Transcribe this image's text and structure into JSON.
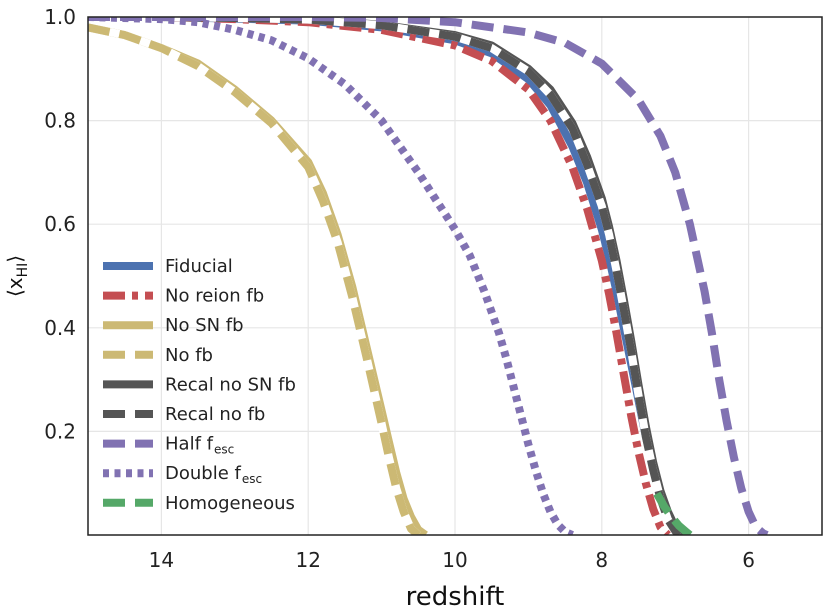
{
  "chart_data": {
    "type": "line",
    "title": "",
    "xlabel": "redshift",
    "ylabel": {
      "prefix": "⟨x",
      "sub": "HI",
      "suffix": "⟩"
    },
    "xlim": [
      15,
      5
    ],
    "ylim": [
      0.0,
      1.0
    ],
    "xticks": [
      14,
      12,
      10,
      8,
      6
    ],
    "xtick_labels": [
      "14",
      "12",
      "10",
      "8",
      "6"
    ],
    "yticks": [
      0.2,
      0.4,
      0.6,
      0.8,
      1.0
    ],
    "ytick_labels": [
      "0.2",
      "0.4",
      "0.6",
      "0.8",
      "1.0"
    ],
    "grid": true,
    "legend_position": "center-left",
    "series": [
      {
        "name": "Fiducial",
        "label": "Fiducial",
        "sub": "",
        "color": "#4C72B0",
        "style": "solid",
        "x": [
          15,
          14,
          13,
          12,
          11,
          10,
          9.5,
          9,
          8.7,
          8.4,
          8.2,
          8.0,
          7.9,
          7.8,
          7.7,
          7.6,
          7.5,
          7.4,
          7.3,
          7.2,
          7.1,
          7.0,
          6.95,
          6.9
        ],
        "y": [
          1.0,
          1.0,
          0.997,
          0.993,
          0.98,
          0.955,
          0.93,
          0.88,
          0.83,
          0.75,
          0.68,
          0.59,
          0.535,
          0.47,
          0.4,
          0.33,
          0.26,
          0.19,
          0.13,
          0.08,
          0.04,
          0.015,
          0.005,
          0.0
        ]
      },
      {
        "name": "No reion fb",
        "label": "No reion fb",
        "sub": "",
        "color": "#C44E52",
        "style": "dashdot",
        "x": [
          15,
          14,
          13,
          12,
          11,
          10,
          9.5,
          9,
          8.7,
          8.4,
          8.2,
          8.0,
          7.9,
          7.8,
          7.7,
          7.6,
          7.5,
          7.4,
          7.3,
          7.2,
          7.1
        ],
        "y": [
          1.0,
          1.0,
          0.996,
          0.99,
          0.975,
          0.945,
          0.915,
          0.86,
          0.8,
          0.71,
          0.63,
          0.53,
          0.465,
          0.39,
          0.31,
          0.23,
          0.16,
          0.1,
          0.05,
          0.015,
          0.0
        ]
      },
      {
        "name": "No SN fb",
        "label": "No SN fb",
        "sub": "",
        "color": "#CCB974",
        "style": "solid",
        "x": [
          15,
          14.5,
          14,
          13.5,
          13,
          12.5,
          12,
          11.8,
          11.6,
          11.4,
          11.2,
          11.0,
          10.9,
          10.8,
          10.7,
          10.6,
          10.5,
          10.4
        ],
        "y": [
          0.98,
          0.965,
          0.94,
          0.91,
          0.86,
          0.8,
          0.72,
          0.66,
          0.58,
          0.48,
          0.36,
          0.24,
          0.18,
          0.12,
          0.07,
          0.035,
          0.01,
          0.0
        ]
      },
      {
        "name": "No fb",
        "label": "No fb",
        "sub": "",
        "color": "#CCB974",
        "style": "dashed",
        "gap_color": "#ffffff",
        "x": [
          15,
          14.5,
          14,
          13.5,
          13,
          12.5,
          12,
          11.8,
          11.6,
          11.4,
          11.2,
          11.0,
          10.9,
          10.8,
          10.7,
          10.6,
          10.5
        ],
        "y": [
          0.98,
          0.965,
          0.94,
          0.905,
          0.855,
          0.795,
          0.71,
          0.645,
          0.565,
          0.46,
          0.34,
          0.215,
          0.15,
          0.09,
          0.045,
          0.012,
          0.0
        ]
      },
      {
        "name": "Recal no SN fb",
        "label": "Recal no SN fb",
        "sub": "",
        "color": "#555555",
        "style": "solid",
        "x": [
          15,
          14,
          13,
          12,
          11,
          10,
          9.5,
          9,
          8.7,
          8.4,
          8.2,
          8.0,
          7.9,
          7.8,
          7.7,
          7.6,
          7.5,
          7.4,
          7.3,
          7.2,
          7.1,
          7.0,
          6.95,
          6.9
        ],
        "y": [
          1.0,
          1.0,
          0.998,
          0.995,
          0.985,
          0.965,
          0.945,
          0.9,
          0.86,
          0.795,
          0.73,
          0.65,
          0.595,
          0.53,
          0.455,
          0.375,
          0.29,
          0.21,
          0.14,
          0.085,
          0.045,
          0.015,
          0.005,
          0.0
        ]
      },
      {
        "name": "Recal no fb",
        "label": "Recal no fb",
        "sub": "",
        "color": "#555555",
        "style": "dashed",
        "gap_color": "#ffffff",
        "x": [
          15,
          14,
          13,
          12,
          11,
          10,
          9.5,
          9,
          8.7,
          8.4,
          8.2,
          8.0,
          7.9,
          7.8,
          7.7,
          7.6,
          7.5,
          7.4,
          7.3,
          7.2,
          7.1,
          7.0,
          6.95
        ],
        "y": [
          1.0,
          1.0,
          0.998,
          0.995,
          0.984,
          0.962,
          0.94,
          0.895,
          0.85,
          0.785,
          0.715,
          0.635,
          0.58,
          0.51,
          0.435,
          0.355,
          0.27,
          0.19,
          0.125,
          0.07,
          0.03,
          0.008,
          0.0
        ]
      },
      {
        "name": "Half f_esc",
        "label": "Half f",
        "sub": "esc",
        "color": "#8172B2",
        "style": "dashed",
        "x": [
          15,
          14,
          13,
          12,
          11,
          10,
          9.0,
          8.5,
          8.0,
          7.5,
          7.2,
          7.0,
          6.8,
          6.6,
          6.5,
          6.4,
          6.3,
          6.2,
          6.1,
          6.0,
          5.9,
          5.8,
          5.75
        ],
        "y": [
          1.0,
          1.0,
          1.0,
          1.0,
          0.998,
          0.99,
          0.97,
          0.95,
          0.91,
          0.84,
          0.77,
          0.7,
          0.6,
          0.47,
          0.39,
          0.3,
          0.22,
          0.15,
          0.09,
          0.045,
          0.015,
          0.003,
          0.0
        ]
      },
      {
        "name": "Double f_esc",
        "label": "Double f",
        "sub": "esc",
        "color": "#8172B2",
        "style": "dotted",
        "x": [
          15,
          14,
          13.5,
          13,
          12.5,
          12,
          11.5,
          11,
          10.5,
          10,
          9.8,
          9.6,
          9.4,
          9.3,
          9.2,
          9.1,
          9.0,
          8.9,
          8.8,
          8.7,
          8.6,
          8.5,
          8.4
        ],
        "y": [
          1.0,
          0.996,
          0.99,
          0.975,
          0.955,
          0.92,
          0.87,
          0.8,
          0.7,
          0.59,
          0.54,
          0.47,
          0.39,
          0.34,
          0.285,
          0.23,
          0.175,
          0.125,
          0.08,
          0.045,
          0.02,
          0.006,
          0.0
        ]
      },
      {
        "name": "Homogeneous",
        "label": "Homogeneous",
        "sub": "",
        "color": "#55A868",
        "style": "dashed",
        "x": [
          7.25,
          7.15,
          7.05,
          6.95,
          6.85,
          6.8
        ],
        "y": [
          0.08,
          0.055,
          0.035,
          0.018,
          0.006,
          0.0
        ]
      }
    ]
  }
}
